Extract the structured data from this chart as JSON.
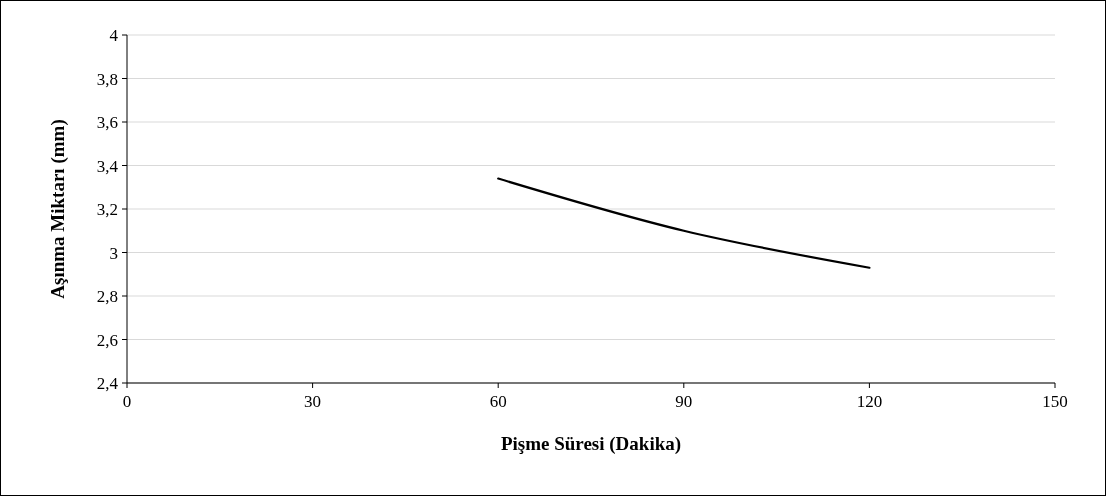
{
  "chart_data": {
    "type": "line",
    "xlabel": "Pişme Süresi (Dakika)",
    "ylabel": "Aşınma Miktarı (mm)",
    "x": [
      60,
      90,
      120
    ],
    "series": [
      {
        "color": "#000000",
        "values": [
          3.34,
          3.1,
          2.93
        ]
      }
    ],
    "xlim": [
      0,
      150
    ],
    "xticks": [
      0,
      30,
      60,
      90,
      120,
      150
    ],
    "ylim": [
      2.4,
      4
    ],
    "yticks": [
      {
        "value": 2.4,
        "label": "2,4"
      },
      {
        "value": 2.6,
        "label": "2,6"
      },
      {
        "value": 2.8,
        "label": "2,8"
      },
      3,
      {
        "value": 3.2,
        "label": "3,2"
      },
      {
        "value": 3.4,
        "label": "3,4"
      },
      {
        "value": 3.6,
        "label": "3,6"
      },
      {
        "value": 3.8,
        "label": "3,8"
      },
      4
    ],
    "grid": "y",
    "marker": "none",
    "line_style": "solid"
  }
}
